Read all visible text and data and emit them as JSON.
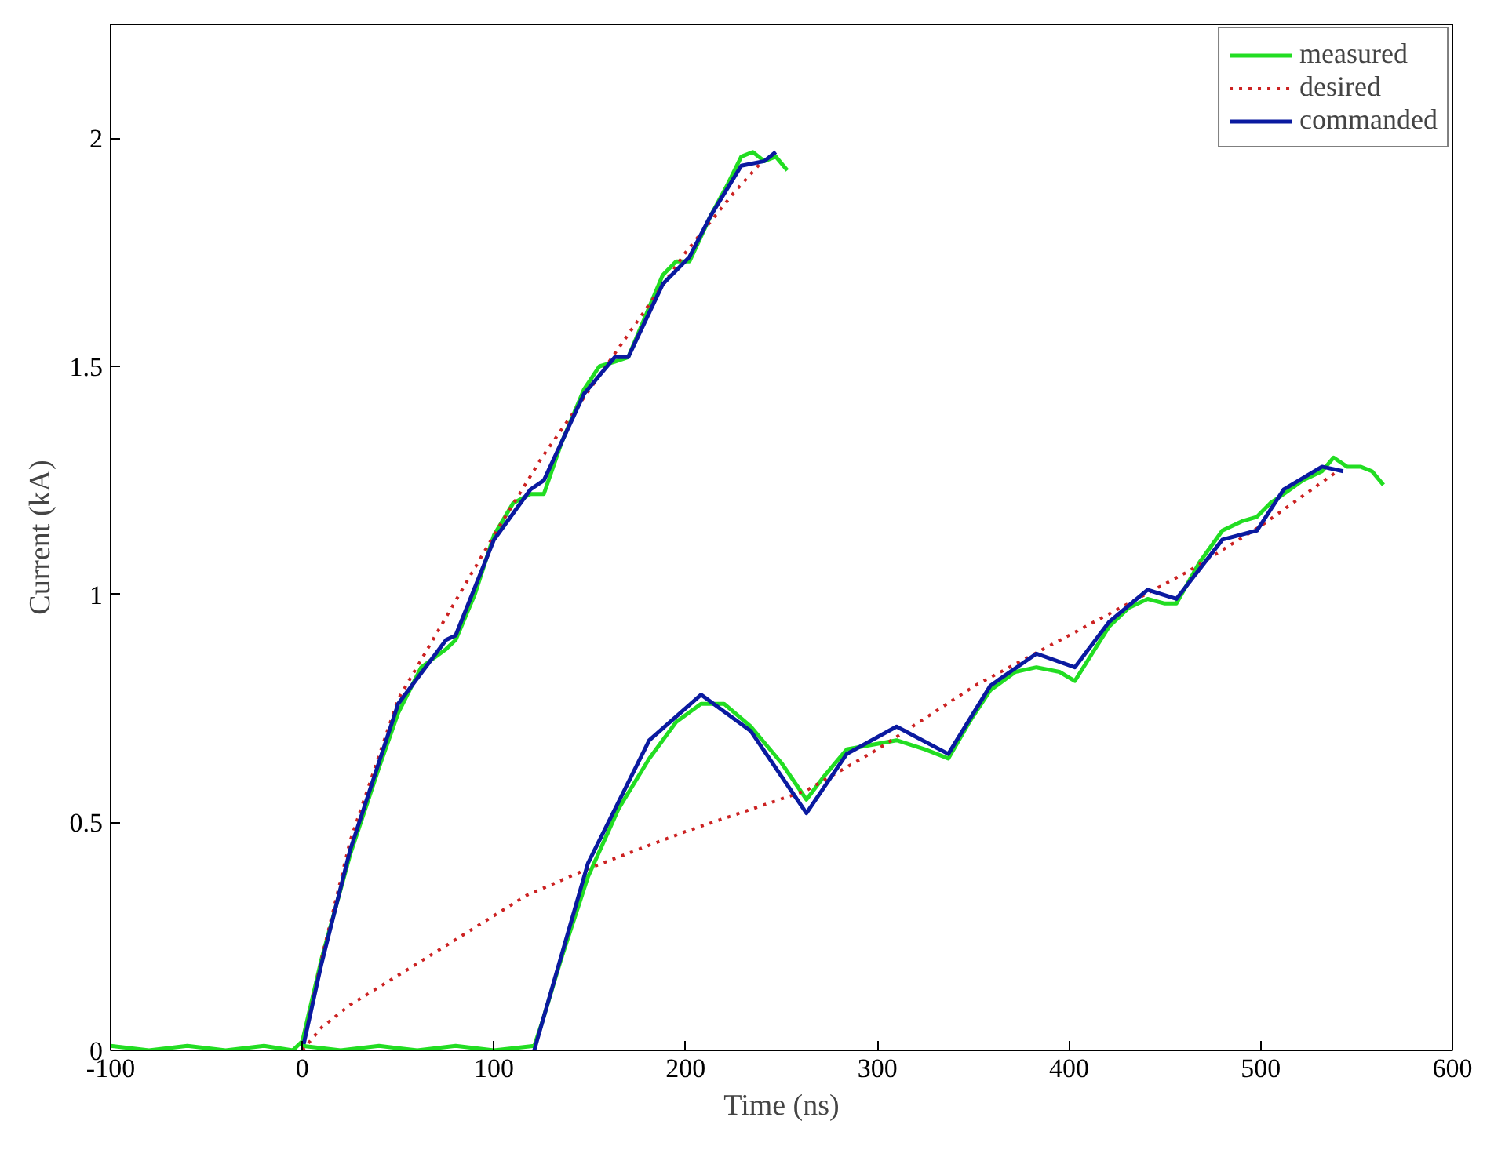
{
  "chart_data": {
    "type": "line",
    "xlabel": "Time (ns)",
    "ylabel": "Current (kA)",
    "xlim": [
      -100,
      600
    ],
    "ylim": [
      0,
      2.25
    ],
    "xticks": [
      -100,
      0,
      100,
      200,
      300,
      400,
      500,
      600
    ],
    "yticks": [
      0,
      0.5,
      1,
      1.5,
      2
    ],
    "grid": false,
    "legend": "top right",
    "marker": "none",
    "series": [
      {
        "name": "measured",
        "color": "#22dd22",
        "line_style": "solid",
        "x": [
          -100,
          -80,
          -60,
          -40,
          -20,
          -5,
          0,
          10,
          25,
          40,
          50,
          62,
          75,
          80,
          90,
          100,
          110,
          119,
          126,
          135,
          147,
          155,
          163,
          170,
          180,
          188,
          195,
          202,
          213,
          222,
          229,
          235,
          241,
          247,
          253
        ],
        "values": [
          0.01,
          0.0,
          0.01,
          0.0,
          0.01,
          0.0,
          0.02,
          0.2,
          0.43,
          0.62,
          0.74,
          0.84,
          0.88,
          0.9,
          1.0,
          1.13,
          1.2,
          1.22,
          1.22,
          1.33,
          1.45,
          1.5,
          1.51,
          1.52,
          1.62,
          1.7,
          1.73,
          1.73,
          1.83,
          1.9,
          1.96,
          1.97,
          1.95,
          1.96,
          1.93
        ]
      },
      {
        "name": "desired",
        "color": "#cc2222",
        "line_style": "dotted",
        "x": [
          0,
          10,
          25,
          50,
          75,
          100,
          125,
          150,
          175,
          200,
          225,
          240
        ],
        "values": [
          0,
          0.2,
          0.46,
          0.77,
          0.95,
          1.13,
          1.3,
          1.45,
          1.6,
          1.75,
          1.88,
          1.95
        ]
      },
      {
        "name": "commanded",
        "color": "#0a1aa0",
        "line_style": "solid",
        "x": [
          0,
          10,
          25,
          50,
          75,
          80,
          100,
          119,
          126,
          147,
          163,
          170,
          188,
          202,
          213,
          229,
          241,
          247
        ],
        "values": [
          0,
          0.19,
          0.44,
          0.76,
          0.9,
          0.91,
          1.12,
          1.23,
          1.25,
          1.44,
          1.52,
          1.52,
          1.68,
          1.74,
          1.83,
          1.94,
          1.95,
          1.97
        ]
      },
      {
        "color": "#22dd22",
        "line_style": "solid",
        "x": [
          0,
          20,
          40,
          60,
          80,
          100,
          121,
          125,
          135,
          149,
          165,
          181,
          195,
          208,
          220,
          234,
          250,
          263,
          272,
          284,
          297,
          310,
          325,
          337,
          348,
          359,
          372,
          383,
          395,
          403,
          412,
          421,
          431,
          441,
          450,
          456,
          468,
          480,
          490,
          498,
          505,
          512,
          522,
          532,
          538,
          545,
          552,
          558,
          564
        ],
        "values": [
          0.01,
          0.0,
          0.01,
          0.0,
          0.01,
          0.0,
          0.01,
          0.06,
          0.2,
          0.38,
          0.53,
          0.64,
          0.72,
          0.76,
          0.76,
          0.71,
          0.63,
          0.55,
          0.6,
          0.66,
          0.67,
          0.68,
          0.66,
          0.64,
          0.72,
          0.79,
          0.83,
          0.84,
          0.83,
          0.81,
          0.87,
          0.93,
          0.97,
          0.99,
          0.98,
          0.98,
          1.07,
          1.14,
          1.16,
          1.17,
          1.2,
          1.22,
          1.25,
          1.27,
          1.3,
          1.28,
          1.28,
          1.27,
          1.24
        ]
      },
      {
        "color": "#cc2222",
        "line_style": "dotted",
        "x": [
          0,
          10,
          25,
          56,
          117,
          150,
          200,
          263,
          300,
          351,
          400,
          462,
          500,
          540
        ],
        "values": [
          0,
          0.05,
          0.1,
          0.18,
          0.34,
          0.4,
          0.48,
          0.57,
          0.66,
          0.8,
          0.91,
          1.05,
          1.15,
          1.27
        ]
      },
      {
        "color": "#0a1aa0",
        "line_style": "solid",
        "x": [
          121,
          123,
          149,
          181,
          208,
          234,
          263,
          284,
          310,
          337,
          359,
          383,
          403,
          421,
          441,
          456,
          480,
          498,
          512,
          532,
          543
        ],
        "values": [
          0,
          0.03,
          0.41,
          0.68,
          0.78,
          0.7,
          0.52,
          0.65,
          0.71,
          0.65,
          0.8,
          0.87,
          0.84,
          0.94,
          1.01,
          0.99,
          1.12,
          1.14,
          1.23,
          1.28,
          1.27
        ]
      }
    ]
  }
}
